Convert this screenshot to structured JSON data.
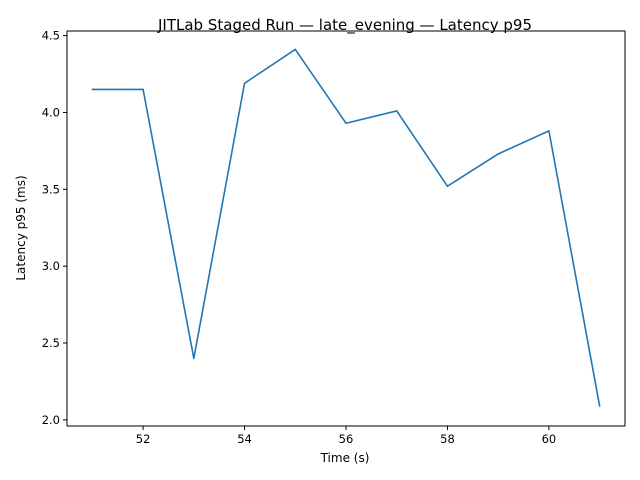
{
  "chart_data": {
    "type": "line",
    "title": "JITLab Staged Run — late_evening — Latency p95",
    "xlabel": "Time (s)",
    "ylabel": "Latency p95 (ms)",
    "xlim": [
      50.5,
      61.5
    ],
    "ylim": [
      1.96,
      4.53
    ],
    "xticks": [
      52,
      54,
      56,
      58,
      60
    ],
    "yticks": [
      2.0,
      2.5,
      3.0,
      3.5,
      4.0,
      4.5
    ],
    "grid": false,
    "series": [
      {
        "color": "#1f77b4",
        "x": [
          51,
          52,
          53,
          54,
          55,
          56,
          57,
          58,
          59,
          60,
          61
        ],
        "y": [
          4.15,
          4.15,
          2.4,
          4.19,
          4.41,
          3.93,
          4.01,
          3.52,
          3.73,
          3.88,
          2.09
        ]
      }
    ]
  }
}
